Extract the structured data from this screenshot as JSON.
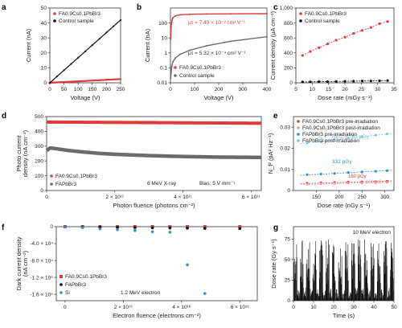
{
  "colors": {
    "red": "#e03a3e",
    "pink": "#f29a9a",
    "black": "#111111",
    "gray": "#6b6b6b",
    "blue": "#2f8fd6",
    "lightblue": "#7ec3ee"
  },
  "chart_data": [
    {
      "panel": "a",
      "type": "line",
      "xlabel": "Voltage (V)",
      "ylabel": "Current (nA)",
      "xlim": [
        0,
        250
      ],
      "ylim": [
        0,
        50
      ],
      "xticks": [
        "0",
        "50",
        "100",
        "150",
        "200",
        "250"
      ],
      "yticks": [
        "0",
        "10",
        "20",
        "30",
        "40",
        "50"
      ],
      "legend_placement": "top-left",
      "series": [
        {
          "name": "FA0.9Cs0.1PbBr3",
          "name_html": "FA<sub>0.9</sub>Cs<sub>0.1</sub>PbBr<sub>3</sub>",
          "color": "red",
          "x": [
            0,
            25,
            50,
            75,
            100,
            125,
            150,
            175,
            200,
            225,
            250
          ],
          "y": [
            0,
            0.25,
            0.5,
            0.75,
            1.0,
            1.25,
            1.5,
            1.75,
            2.0,
            2.25,
            2.5
          ]
        },
        {
          "name": "Control sample",
          "color": "black",
          "x": [
            0,
            25,
            50,
            75,
            100,
            125,
            150,
            175,
            200,
            225,
            250
          ],
          "y": [
            0,
            4.2,
            8.4,
            12.6,
            16.8,
            21.0,
            25.2,
            29.4,
            33.6,
            37.8,
            42.0
          ]
        }
      ]
    },
    {
      "panel": "b",
      "type": "line",
      "yscale": "log",
      "xlabel": "Voltage (V)",
      "ylabel": "Current (nA)",
      "xlim": [
        0,
        400
      ],
      "ylim": [
        0.01,
        1000
      ],
      "xticks": [
        "0",
        "100",
        "200",
        "300",
        "400"
      ],
      "yticks": [
        "0.01",
        "0.1",
        "1",
        "10",
        "100"
      ],
      "legend_placement": "bottom-left",
      "annotations": [
        {
          "text": "μτ = 7.49 × 10⁻³ cm² V⁻¹",
          "color": "red"
        },
        {
          "text": "μτ = 5.32 × 10⁻⁴ cm² V⁻¹",
          "color": "black"
        }
      ],
      "series": [
        {
          "name": "FA0.9Cs0.1PbBr3",
          "color": "red",
          "x": [
            1,
            3,
            6,
            10,
            20,
            40,
            80,
            150,
            250,
            400
          ],
          "y": [
            8,
            60,
            150,
            220,
            300,
            350,
            380,
            400,
            410,
            420
          ]
        },
        {
          "name": "Control sample",
          "color": "gray",
          "x": [
            1,
            5,
            10,
            20,
            40,
            80,
            150,
            250,
            400
          ],
          "y": [
            0.02,
            0.12,
            0.25,
            0.45,
            0.8,
            1.5,
            3,
            6,
            12
          ]
        }
      ]
    },
    {
      "panel": "c",
      "type": "line",
      "xlabel": "Dose rate (mGy s⁻¹)",
      "ylabel": "Current density (μA cm⁻²)",
      "xlim": [
        3,
        37
      ],
      "ylim": [
        0,
        1000
      ],
      "xticks": [
        "5",
        "10",
        "15",
        "20",
        "25",
        "30",
        "35"
      ],
      "yticks": [
        "0",
        "200",
        "400",
        "600",
        "800",
        "1,000"
      ],
      "legend_placement": "top-left",
      "series": [
        {
          "name": "FA0.9Cs0.1PbBr3",
          "color": "red",
          "x": [
            5.3,
            8,
            11,
            14,
            17,
            20,
            23,
            26,
            29,
            32,
            34.8
          ],
          "y": [
            365,
            420,
            470,
            520,
            570,
            610,
            660,
            700,
            740,
            790,
            820
          ]
        },
        {
          "name": "Control sample",
          "color": "black",
          "x": [
            5.3,
            8,
            11,
            14,
            17,
            20,
            23,
            26,
            29,
            32,
            34.8
          ],
          "y": [
            12,
            13,
            15,
            16,
            18,
            20,
            22,
            24,
            25,
            27,
            30
          ]
        }
      ]
    },
    {
      "panel": "d",
      "type": "scatter",
      "xlabel": "Photon fluence (photons cm⁻²)",
      "ylabel": "Photo current density (nA cm⁻²)",
      "xlim": [
        0,
        630000000000.0
      ],
      "ylim": [
        0,
        500
      ],
      "xticks": [
        "0",
        "2 × 10¹¹",
        "4 × 10¹¹",
        "6 × 10¹¹"
      ],
      "yticks": [
        "0",
        "100",
        "200",
        "300",
        "400",
        "500"
      ],
      "annotations": [
        {
          "text": "6 MeV X-ray"
        },
        {
          "text": "Bias: 5 V mm⁻¹"
        }
      ],
      "legend_placement": "bottom-left",
      "series": [
        {
          "name": "FA0.9Cs0.1PbBr3",
          "color": "red",
          "x": [
            0,
            630000000000.0
          ],
          "y": [
            463,
            455
          ]
        },
        {
          "name": "FAPbBr3",
          "name_html": "FAPbBr<sub>3</sub>",
          "color": "gray",
          "x": [
            0,
            10000000000.0,
            30000000000.0,
            60000000000.0,
            100000000000.0,
            150000000000.0,
            200000000000.0,
            300000000000.0,
            400000000000.0,
            500000000000.0,
            630000000000.0
          ],
          "y": [
            270,
            288,
            282,
            272,
            262,
            252,
            245,
            236,
            230,
            226,
            224
          ]
        }
      ]
    },
    {
      "panel": "e",
      "type": "scatter",
      "xlabel": "Dose rate (nGy s⁻¹)",
      "ylabel": "N_f² (pA² Hz⁻¹)",
      "xlim": [
        100,
        320
      ],
      "ylim": [
        0,
        0.035
      ],
      "xticks": [
        "150",
        "200",
        "250",
        "300"
      ],
      "yticks": [
        "0",
        "0.01",
        "0.02",
        "0.03"
      ],
      "legend_placement": "top-left",
      "annotations": [
        {
          "text": "NED = 765 pGy",
          "color": "lightblue"
        },
        {
          "text": "332 pGy",
          "color": "blue"
        },
        {
          "text": "160 pGy",
          "color": "red"
        },
        {
          "text": "160 pGy",
          "color": "pink"
        }
      ],
      "series": [
        {
          "name": "FA0.9Cs0.1PbBr3 pre-irradiation",
          "color": "red",
          "x": [
            130,
            160,
            190,
            220,
            250,
            280,
            305
          ],
          "y": [
            0.0035,
            0.0037,
            0.0038,
            0.004,
            0.0041,
            0.0042,
            0.0044
          ]
        },
        {
          "name": "FA0.9Cs0.1PbBr3 post-irradiation",
          "color": "pink",
          "x": [
            130,
            160,
            190,
            220,
            250,
            280,
            305
          ],
          "y": [
            0.003,
            0.0032,
            0.0033,
            0.0035,
            0.0036,
            0.0037,
            0.0039
          ]
        },
        {
          "name": "FAPbBr3 pre-irradiation",
          "color": "blue",
          "x": [
            130,
            160,
            190,
            220,
            250,
            280,
            305
          ],
          "y": [
            0.0075,
            0.0078,
            0.0081,
            0.0085,
            0.0088,
            0.0091,
            0.0094
          ]
        },
        {
          "name": "FAPbBr3 post-irradiation",
          "color": "lightblue",
          "x": [
            130,
            160,
            190,
            220,
            250,
            280,
            305
          ],
          "y": [
            0.0225,
            0.0232,
            0.024,
            0.0248,
            0.0255,
            0.0262,
            0.0268
          ]
        }
      ]
    },
    {
      "panel": "f",
      "type": "scatter",
      "xlabel": "Electron fluence (electrons cm⁻²)",
      "ylabel": "Dark current density (nA cm⁻²)",
      "xlim": [
        -3000000000000000.0,
        6.6e+16
      ],
      "ylim": [
        0,
        -175000.0
      ],
      "yinverted": true,
      "xticks": [
        "0",
        "2 × 10¹⁶",
        "4 × 10¹⁶",
        "6 × 10¹⁶"
      ],
      "yticks": [
        "0",
        "-4.0 × 10⁴",
        "-8.0 × 10⁴",
        "-1.2 × 10⁵",
        "-1.6 × 10⁵"
      ],
      "annotations": [
        {
          "text": "1.2 MeV electron"
        }
      ],
      "legend_placement": "bottom-left",
      "series": [
        {
          "name": "FA0.9Cs0.1PbBr3",
          "color": "red",
          "x": [
            0,
            6000000000000000.0,
            1.2e+16,
            1.8e+16,
            2.4e+16,
            3e+16,
            3.6e+16,
            4.2e+16,
            4.8e+16,
            6e+16
          ],
          "y": [
            0,
            0,
            0,
            0,
            0,
            0,
            0,
            0,
            0,
            0
          ]
        },
        {
          "name": "FAPbBr3",
          "color": "black",
          "x": [
            0,
            6000000000000000.0,
            1.2e+16,
            1.8e+16,
            2.4e+16,
            3e+16,
            3.6e+16,
            4.2e+16,
            4.8e+16,
            6e+16
          ],
          "y": [
            0,
            -500,
            -1000,
            -1500,
            -2000,
            -2500,
            -3000,
            -3500,
            -4000,
            -4500
          ]
        },
        {
          "name": "Si",
          "color": "blue",
          "x": [
            0,
            6000000000000000.0,
            1.2e+16,
            1.8e+16,
            2.4e+16,
            3e+16,
            3.6e+16,
            4.2e+16,
            4.8e+16
          ],
          "y": [
            -500,
            -2000,
            -5000,
            -7000,
            -9000,
            -12000,
            -13000,
            -90000,
            -158000
          ]
        }
      ]
    },
    {
      "panel": "g",
      "type": "bar",
      "xlabel": "Time (s)",
      "ylabel": "Dose rate (Gy s⁻¹)",
      "xlim": [
        0,
        50
      ],
      "ylim": [
        0,
        90
      ],
      "xticks": [
        "0",
        "10",
        "20",
        "30",
        "40",
        "50"
      ],
      "yticks": [
        "0",
        "25",
        "50",
        "75"
      ],
      "annotations": [
        {
          "text": "10 MeV electron"
        }
      ],
      "series": [
        {
          "name": "",
          "color": "black",
          "pulses": "dense"
        }
      ]
    }
  ]
}
